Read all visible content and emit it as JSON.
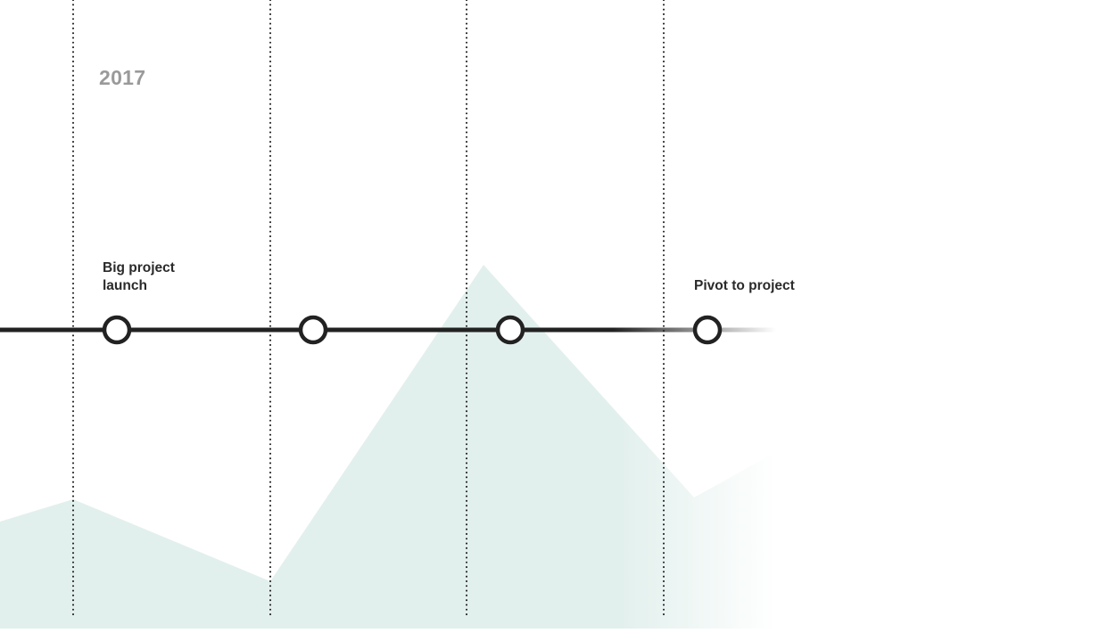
{
  "timeline": {
    "year": "2017",
    "events": [
      {
        "lines": [
          "Big project",
          "launch"
        ]
      },
      {
        "lines": []
      },
      {
        "lines": []
      },
      {
        "lines": [
          "Pivot to project"
        ]
      }
    ]
  },
  "colors": {
    "timeline_line": "#222222",
    "node_stroke": "#222222",
    "node_fill": "#ffffff",
    "area_fill": "#e2f0ed",
    "divider": "#1a1a1a",
    "year_text": "#9a9a9a",
    "label_text": "#2a2a2a"
  }
}
